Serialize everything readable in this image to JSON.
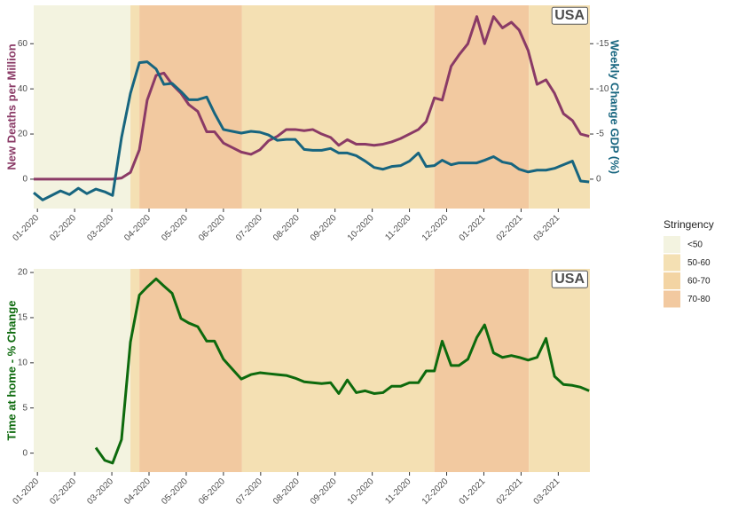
{
  "chart_data": [
    {
      "type": "line",
      "ylabel": "New Deaths per Million",
      "y2label": "Weekly Change GDP (%)",
      "annotation": "USA",
      "grid": false,
      "xlim": [
        -0.1,
        14.85
      ],
      "xticks": [
        {
          "value": 0,
          "label": "01-2020"
        },
        {
          "value": 1,
          "label": "02-2020"
        },
        {
          "value": 2,
          "label": "03-2020"
        },
        {
          "value": 3,
          "label": "04-2020"
        },
        {
          "value": 4,
          "label": "05-2020"
        },
        {
          "value": 5,
          "label": "06-2020"
        },
        {
          "value": 6,
          "label": "07-2020"
        },
        {
          "value": 7,
          "label": "08-2020"
        },
        {
          "value": 8,
          "label": "09-2020"
        },
        {
          "value": 9,
          "label": "10-2020"
        },
        {
          "value": 10,
          "label": "11-2020"
        },
        {
          "value": 11,
          "label": "12-2020"
        },
        {
          "value": 12,
          "label": "01-2021"
        },
        {
          "value": 13,
          "label": "02-2021"
        },
        {
          "value": 14,
          "label": "03-2021"
        }
      ],
      "ylim": [
        -13,
        77
      ],
      "yticks": [
        0,
        20,
        40,
        60
      ],
      "y2lim": [
        3.25,
        -19.25
      ],
      "y2ticks": [
        -15,
        -10,
        -5,
        0
      ],
      "stringency_bands": [
        {
          "start": -0.1,
          "end": 2.5,
          "level": "<50"
        },
        {
          "start": 2.5,
          "end": 2.74,
          "level": "50-60"
        },
        {
          "start": 2.74,
          "end": 5.5,
          "level": "70-80"
        },
        {
          "start": 5.5,
          "end": 10.67,
          "level": "50-60"
        },
        {
          "start": 10.67,
          "end": 13.21,
          "level": "70-80"
        },
        {
          "start": 13.21,
          "end": 14.85,
          "level": "50-60"
        }
      ],
      "legend": {
        "title": "Stringency",
        "items": [
          {
            "label": "<50",
            "color": "#f3f3e0"
          },
          {
            "label": "50-60",
            "color": "#f4e0b3"
          },
          {
            "label": "60-70",
            "color": "#f3d4a3"
          },
          {
            "label": "70-80",
            "color": "#f2c9a0"
          }
        ]
      },
      "series": [
        {
          "name": "New Deaths per Million",
          "color": "#8a3a66",
          "axis": "y",
          "x": [
            -0.1,
            0.5,
            1,
            1.5,
            2,
            2.26,
            2.5,
            2.74,
            2.95,
            3.19,
            3.4,
            3.62,
            3.86,
            4.07,
            4.31,
            4.55,
            4.76,
            5,
            5.24,
            5.48,
            5.74,
            5.98,
            6.21,
            6.45,
            6.69,
            6.93,
            7.17,
            7.4,
            7.64,
            7.88,
            8.1,
            8.33,
            8.57,
            8.81,
            9.05,
            9.29,
            9.52,
            9.76,
            10,
            10.24,
            10.45,
            10.67,
            10.88,
            11.12,
            11.33,
            11.57,
            11.81,
            12.02,
            12.26,
            12.5,
            12.74,
            12.95,
            13.19,
            13.43,
            13.67,
            13.9,
            14.14,
            14.38,
            14.6,
            14.83
          ],
          "values": [
            0,
            0,
            0,
            0,
            0,
            0.5,
            3,
            13,
            35,
            46,
            47,
            42,
            38,
            33,
            30,
            21,
            21,
            16,
            14,
            12,
            11,
            13,
            17,
            19,
            22,
            22,
            21.5,
            22,
            20,
            18.5,
            15,
            17.5,
            15.5,
            15.5,
            15,
            15.5,
            16.5,
            18,
            20,
            22,
            25.5,
            36,
            35,
            50,
            55,
            60,
            72,
            60,
            72,
            67,
            69.5,
            66,
            57,
            42,
            44,
            38,
            29,
            26,
            20,
            19
          ]
        },
        {
          "name": "Weekly Change GDP (%)",
          "color": "#17657f",
          "axis": "y2",
          "x": [
            -0.1,
            0.14,
            0.38,
            0.62,
            0.86,
            1.1,
            1.33,
            1.57,
            1.81,
            2.02,
            2.26,
            2.5,
            2.74,
            2.95,
            3.19,
            3.4,
            3.62,
            3.86,
            4.07,
            4.31,
            4.55,
            4.76,
            5,
            5.24,
            5.48,
            5.74,
            5.98,
            6.21,
            6.45,
            6.69,
            6.93,
            7.17,
            7.4,
            7.64,
            7.88,
            8.1,
            8.33,
            8.57,
            8.81,
            9.05,
            9.29,
            9.52,
            9.76,
            10,
            10.24,
            10.45,
            10.67,
            10.88,
            11.12,
            11.33,
            11.57,
            11.81,
            12.02,
            12.26,
            12.5,
            12.74,
            12.95,
            13.19,
            13.43,
            13.67,
            13.9,
            14.14,
            14.38,
            14.6,
            14.83
          ],
          "values": [
            1.5,
            2.3,
            1.8,
            1.3,
            1.7,
            1,
            1.6,
            1.1,
            1.4,
            1.8,
            -4.6,
            -9.5,
            -12.9,
            -13,
            -12.2,
            -10.5,
            -10.6,
            -9.7,
            -8.8,
            -8.8,
            -9.1,
            -7.3,
            -5.5,
            -5.3,
            -5.1,
            -5.3,
            -5.2,
            -4.9,
            -4.3,
            -4.4,
            -4.4,
            -3.3,
            -3.2,
            -3.2,
            -3.4,
            -2.9,
            -2.9,
            -2.6,
            -2,
            -1.3,
            -1.1,
            -1.4,
            -1.5,
            -2,
            -2.9,
            -1.4,
            -1.5,
            -2.1,
            -1.6,
            -1.8,
            -1.8,
            -1.8,
            -2.1,
            -2.5,
            -1.9,
            -1.7,
            -1.1,
            -0.8,
            -1,
            -1,
            -1.2,
            -1.6,
            -2,
            0.2,
            0.3
          ]
        }
      ]
    },
    {
      "type": "line",
      "ylabel": "Time at home - % Change",
      "annotation": "USA",
      "grid": false,
      "xlim": [
        -0.1,
        14.85
      ],
      "xticks": [
        {
          "value": 0,
          "label": "01-2020"
        },
        {
          "value": 1,
          "label": "02-2020"
        },
        {
          "value": 2,
          "label": "03-2020"
        },
        {
          "value": 3,
          "label": "04-2020"
        },
        {
          "value": 4,
          "label": "05-2020"
        },
        {
          "value": 5,
          "label": "06-2020"
        },
        {
          "value": 6,
          "label": "07-2020"
        },
        {
          "value": 7,
          "label": "08-2020"
        },
        {
          "value": 8,
          "label": "09-2020"
        },
        {
          "value": 9,
          "label": "10-2020"
        },
        {
          "value": 10,
          "label": "11-2020"
        },
        {
          "value": 11,
          "label": "12-2020"
        },
        {
          "value": 12,
          "label": "01-2021"
        },
        {
          "value": 13,
          "label": "02-2021"
        },
        {
          "value": 14,
          "label": "03-2021"
        }
      ],
      "ylim": [
        -2.1,
        20.4
      ],
      "yticks": [
        0,
        5,
        10,
        15,
        20
      ],
      "stringency_bands": [
        {
          "start": -0.1,
          "end": 2.5,
          "level": "<50"
        },
        {
          "start": 2.5,
          "end": 2.74,
          "level": "50-60"
        },
        {
          "start": 2.74,
          "end": 5.5,
          "level": "70-80"
        },
        {
          "start": 5.5,
          "end": 10.67,
          "level": "50-60"
        },
        {
          "start": 10.67,
          "end": 13.21,
          "level": "70-80"
        },
        {
          "start": 13.21,
          "end": 14.85,
          "level": "50-60"
        }
      ],
      "series": [
        {
          "name": "Time at home - % Change",
          "color": "#0d6a0d",
          "axis": "y",
          "x": [
            1.57,
            1.81,
            2.02,
            2.26,
            2.5,
            2.74,
            2.95,
            3.19,
            3.4,
            3.62,
            3.86,
            4.07,
            4.31,
            4.55,
            4.76,
            5,
            5.24,
            5.48,
            5.74,
            5.98,
            6.21,
            6.45,
            6.69,
            6.93,
            7.17,
            7.4,
            7.64,
            7.88,
            8.1,
            8.33,
            8.57,
            8.81,
            9.05,
            9.29,
            9.52,
            9.76,
            10,
            10.24,
            10.45,
            10.67,
            10.88,
            11.12,
            11.33,
            11.57,
            11.81,
            12.02,
            12.26,
            12.5,
            12.74,
            12.95,
            13.19,
            13.43,
            13.67,
            13.9,
            14.14,
            14.38,
            14.6,
            14.83
          ],
          "values": [
            0.6,
            -0.8,
            -1.1,
            1.5,
            12.3,
            17.5,
            18.4,
            19.3,
            18.5,
            17.7,
            14.9,
            14.4,
            14,
            12.4,
            12.4,
            10.4,
            9.3,
            8.2,
            8.7,
            8.9,
            8.8,
            8.7,
            8.6,
            8.3,
            7.9,
            7.8,
            7.7,
            7.8,
            6.6,
            8.1,
            6.7,
            6.9,
            6.6,
            6.7,
            7.4,
            7.4,
            7.8,
            7.8,
            9.1,
            9.1,
            12.4,
            9.7,
            9.7,
            10.4,
            12.8,
            14.2,
            11.1,
            10.6,
            10.8,
            10.6,
            10.3,
            10.6,
            12.7,
            8.5,
            7.6,
            7.5,
            7.3,
            6.9
          ]
        }
      ]
    }
  ]
}
